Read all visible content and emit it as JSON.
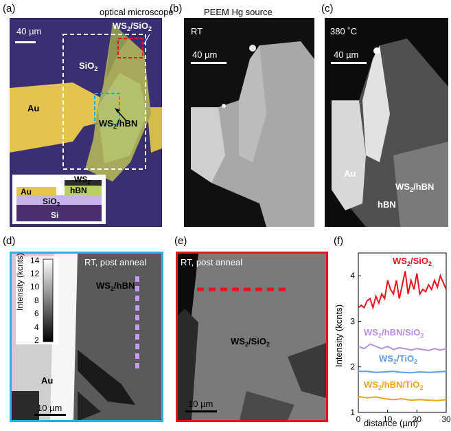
{
  "panels": {
    "a": {
      "label": "(a)",
      "caption": "optical microscope",
      "scalebar": "40 µm",
      "labels": {
        "ws2_sio2": "WS",
        "ws2_sio2_sub": "2",
        "ws2_sio2_tail": "/SiO",
        "ws2_sio2_tail_sub": "2",
        "sio2": "SiO",
        "sio2_sub": "2",
        "au": "Au",
        "ws2_hbn": "WS",
        "ws2_hbn_sub": "2",
        "ws2_hbn_tail": "/hBN"
      },
      "inset": {
        "ws2": "WS",
        "ws2_sub": "2",
        "au": "Au",
        "hbn": "hBN",
        "sio2": "SiO",
        "sio2_sub": "2",
        "si": "Si"
      }
    },
    "b": {
      "label": "(b)",
      "caption": "PEEM Hg source",
      "temp": "RT",
      "scalebar": "40 µm"
    },
    "c": {
      "label": "(c)",
      "temp": "380 ˚C",
      "scalebar": "40 µm",
      "labels": {
        "au": "Au",
        "ws2_hbn": "WS",
        "ws2_hbn_sub": "2",
        "ws2_hbn_tail": "/hBN",
        "hbn": "hBN"
      }
    },
    "d": {
      "label": "(d)",
      "caption": "RT, post anneal",
      "scalebar": "10 µm",
      "labels": {
        "ws2_hbn": "WS",
        "ws2_hbn_sub": "2",
        "ws2_hbn_tail": "/hBN",
        "au": "Au"
      },
      "colorbar": {
        "title": "Intensity (kcnts)",
        "ticks": [
          "14",
          "12",
          "10",
          "8",
          "6",
          "4",
          "2"
        ]
      }
    },
    "e": {
      "label": "(e)",
      "caption": "RT, post anneal",
      "scalebar": "10 µm",
      "labels": {
        "ws2_sio2": "WS",
        "ws2_sio2_sub": "2",
        "ws2_sio2_tail": "/SiO",
        "ws2_sio2_tail_sub": "2"
      }
    },
    "f": {
      "label": "(f)"
    }
  },
  "chart_data": {
    "type": "line",
    "xlabel": "distance (µm)",
    "ylabel": "Intensity (kcnts)",
    "xlim": [
      0,
      30
    ],
    "ylim": [
      1,
      4.5
    ],
    "xticks": [
      "0",
      "10",
      "20",
      "30"
    ],
    "yticks": [
      "1",
      "2",
      "3",
      "4"
    ],
    "series": [
      {
        "name": "WS2/SiO2",
        "color": "#e8131b",
        "x": [
          0,
          1,
          2,
          3,
          4,
          5,
          6,
          7,
          8,
          9,
          10,
          11,
          12,
          13,
          14,
          15,
          16,
          17,
          18,
          19,
          20,
          21,
          22,
          23,
          24,
          25,
          26,
          27,
          28,
          29,
          30
        ],
        "values": [
          3.3,
          3.35,
          3.3,
          3.45,
          3.5,
          3.3,
          3.55,
          3.4,
          3.6,
          3.5,
          3.9,
          3.7,
          3.6,
          3.9,
          3.5,
          3.8,
          4.1,
          3.6,
          3.9,
          3.7,
          4.05,
          3.6,
          3.7,
          3.65,
          3.8,
          3.7,
          3.9,
          3.75,
          4.0,
          3.85,
          3.7
        ]
      },
      {
        "name": "WS2/hBN/SiO2",
        "color": "#b48ee0",
        "x": [
          0,
          2,
          4,
          6,
          8,
          10,
          12,
          14,
          16,
          18,
          20,
          22,
          24,
          26,
          28,
          30
        ],
        "values": [
          2.45,
          2.4,
          2.5,
          2.45,
          2.4,
          2.45,
          2.38,
          2.42,
          2.4,
          2.37,
          2.4,
          2.38,
          2.36,
          2.4,
          2.37,
          2.4
        ]
      },
      {
        "name": "WS2/TiO2",
        "color": "#5b9ce8",
        "x": [
          0,
          3,
          6,
          9,
          12,
          15,
          18,
          21,
          24,
          27,
          30
        ],
        "values": [
          1.9,
          1.9,
          1.88,
          1.89,
          1.9,
          1.88,
          1.87,
          1.89,
          1.88,
          1.89,
          1.9
        ]
      },
      {
        "name": "WS2/hBN/TiO2",
        "color": "#f0a514",
        "x": [
          0,
          3,
          6,
          9,
          12,
          15,
          18,
          21,
          24,
          27,
          30
        ],
        "values": [
          1.35,
          1.32,
          1.34,
          1.3,
          1.28,
          1.3,
          1.27,
          1.28,
          1.27,
          1.26,
          1.28
        ]
      }
    ],
    "legend_labels": [
      {
        "main": "WS",
        "sub": "2",
        "tail": "/SiO",
        "tail_sub": "2"
      },
      {
        "main": "WS",
        "sub": "2",
        "tail": "/hBN/SiO",
        "tail_sub": "2"
      },
      {
        "main": "WS",
        "sub": "2",
        "tail": "/TiO",
        "tail_sub": "2"
      },
      {
        "main": "WS",
        "sub": "2",
        "tail": "/hBN/TiO",
        "tail_sub": "2"
      }
    ]
  }
}
